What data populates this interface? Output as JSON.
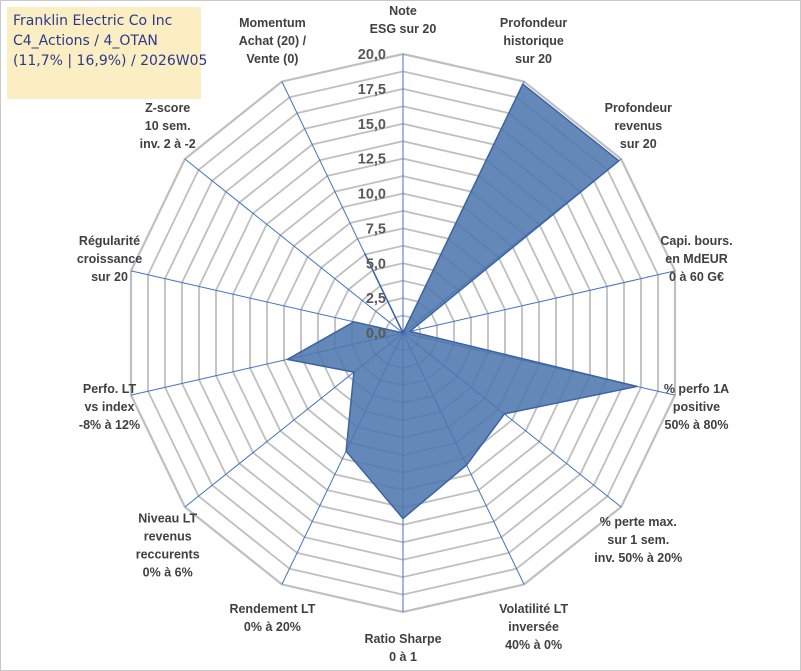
{
  "title_box": {
    "line1": "Franklin Electric Co Inc",
    "line2": "C4_Actions / 4_OTAN",
    "line3": "(11,7% | 16,9%) / 2026W05"
  },
  "colors": {
    "fill": "#4f78ad",
    "stroke": "#3a64a4",
    "grid": "#bfbfbf",
    "spoke": "#4472c4",
    "title_bg": "#fbeec2",
    "title_text": "#2a3b8f"
  },
  "chart_data": {
    "type": "radar",
    "range": [
      0,
      20
    ],
    "tick_labels": [
      "0,0",
      "2,5",
      "5,0",
      "7,5",
      "10,0",
      "12,5",
      "15,0",
      "17,5",
      "20,0"
    ],
    "tick_values": [
      0,
      2.5,
      5,
      7.5,
      10,
      12.5,
      15,
      17.5,
      20
    ],
    "axes": [
      {
        "label": [
          "Note",
          "ESG sur 20"
        ],
        "value": 0.0
      },
      {
        "label": [
          "Profondeur",
          "historique",
          "sur 20"
        ],
        "value": 19.8
      },
      {
        "label": [
          "Profondeur",
          "revenus",
          "sur 20"
        ],
        "value": 19.8
      },
      {
        "label": [
          "Capi. bours.",
          "en MdEUR",
          "0 à 60 G€"
        ],
        "value": 0.5
      },
      {
        "label": [
          "% perfo 1A",
          "positive",
          "50% à 80%"
        ],
        "value": 17.2
      },
      {
        "label": [
          "% perte max.",
          "sur 1 sem.",
          "inv. 50% à 20%"
        ],
        "value": 9.3
      },
      {
        "label": [
          "Volatilité LT",
          "inversée",
          "40% à 0%"
        ],
        "value": 10.5
      },
      {
        "label": [
          "Ratio Sharpe",
          "0 à 1"
        ],
        "value": 13.3
      },
      {
        "label": [
          "Rendement LT",
          "0% à 20%"
        ],
        "value": 9.4
      },
      {
        "label": [
          "Niveau LT",
          "revenus",
          "reccurents",
          "0% à 6%"
        ],
        "value": 4.5
      },
      {
        "label": [
          "Perfo. LT",
          "vs index",
          "-8% à 12%"
        ],
        "value": 8.5
      },
      {
        "label": [
          "Régularité",
          "croissance",
          "sur 20"
        ],
        "value": 3.6
      },
      {
        "label": [
          "Z-score",
          "10 sem.",
          "inv. 2 à -2"
        ],
        "value": 0.0
      },
      {
        "label": [
          "Momentum",
          "Achat (20) /",
          "Vente (0)"
        ],
        "value": 6.3
      }
    ]
  }
}
